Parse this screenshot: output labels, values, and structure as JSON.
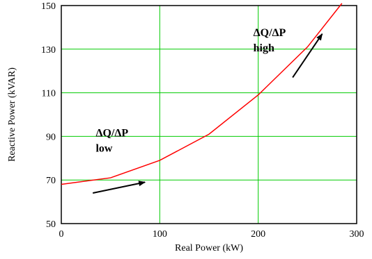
{
  "chart_data": {
    "type": "line",
    "title": "",
    "xlabel": "Real Power (kW)",
    "ylabel": "Reactive Power (kVAR)",
    "xlim": [
      0,
      300
    ],
    "ylim": [
      50,
      150
    ],
    "x_ticks": [
      "0",
      "100",
      "200",
      "300"
    ],
    "y_ticks": [
      "50",
      "70",
      "90",
      "110",
      "130",
      "150"
    ],
    "grid": true,
    "series": [
      {
        "color": "#ff0000",
        "x": [
          0,
          50,
          100,
          150,
          200,
          250,
          285
        ],
        "y": [
          68,
          71,
          79,
          91,
          109,
          131,
          151
        ]
      }
    ],
    "annotations": [
      {
        "line1": "ΔQ/ΔP",
        "line2": "low",
        "at": [
          35,
          90
        ],
        "arrow_from": [
          32,
          64
        ],
        "arrow_to": [
          85,
          69
        ]
      },
      {
        "line1": "ΔQ/ΔP",
        "line2": "high",
        "at": [
          195,
          136
        ],
        "arrow_from": [
          235,
          117
        ],
        "arrow_to": [
          265,
          137
        ]
      }
    ],
    "grid_color": "#00cc00",
    "arrow_color": "#000000"
  }
}
